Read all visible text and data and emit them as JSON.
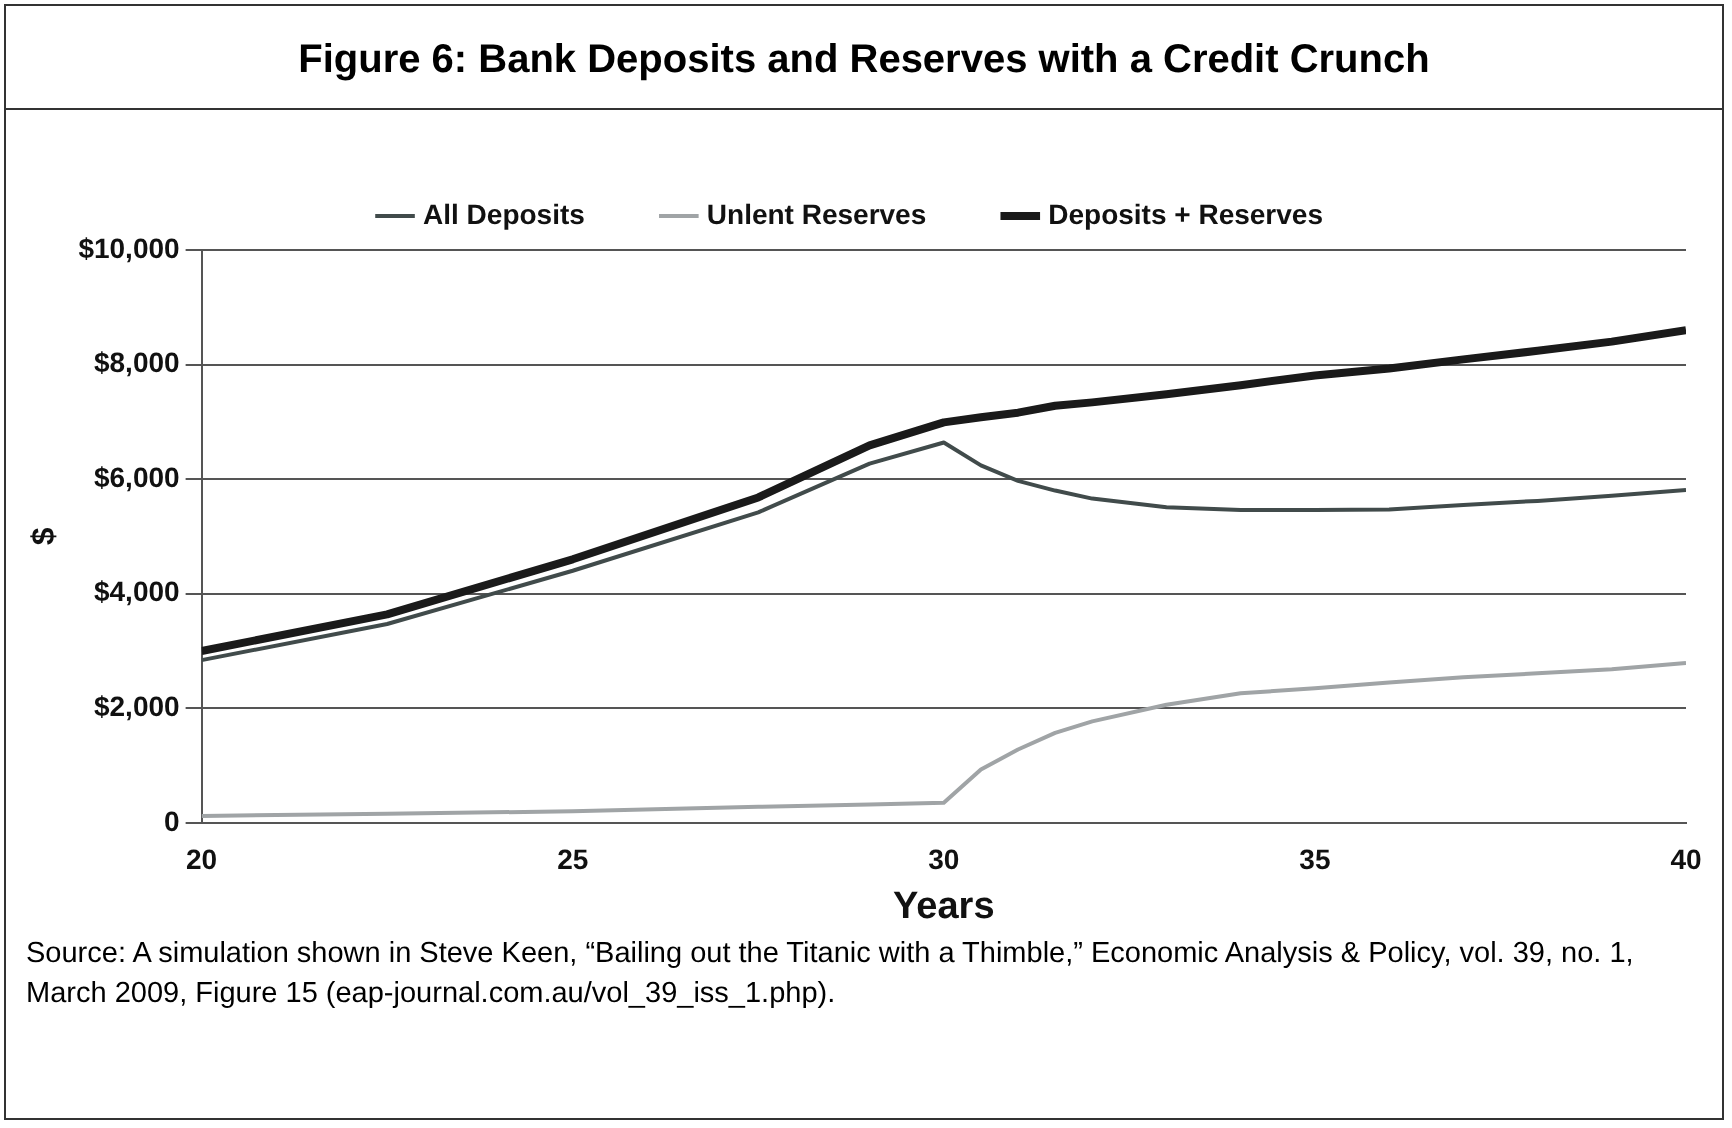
{
  "chart_data": {
    "type": "line",
    "title": "Figure 6: Bank Deposits and Reserves with a Credit Crunch",
    "xlabel": "Years",
    "ylabel": "$",
    "annotations": [
      "Source: A simulation shown in Steve Keen, “Bailing out the Titanic with a Thimble,” Economic Analysis & Policy, vol. 39, no. 1, March 2009, Figure 15 (eap-journal.com.au/vol_39_iss_1.php)."
    ],
    "x": [
      20,
      22.5,
      25,
      27.5,
      29,
      30,
      30.5,
      31,
      31.5,
      32,
      33,
      34,
      35,
      36,
      37,
      38,
      39,
      40
    ],
    "series": [
      {
        "name": "All Deposits",
        "color": "#414b4b",
        "values": [
          2840,
          3470,
          4400,
          5420,
          6270,
          6640,
          6240,
          5970,
          5800,
          5660,
          5510,
          5460,
          5460,
          5470,
          5550,
          5620,
          5710,
          5810
        ]
      },
      {
        "name": "Unlent Reserves",
        "color": "#a0a4a6",
        "values": [
          120,
          160,
          200,
          280,
          320,
          350,
          930,
          1280,
          1570,
          1770,
          2060,
          2260,
          2350,
          2450,
          2540,
          2610,
          2680,
          2790
        ]
      },
      {
        "name": "Deposits + Reserves",
        "color": "#1a1a1a",
        "values": [
          3000,
          3640,
          4600,
          5680,
          6590,
          6990,
          7080,
          7160,
          7280,
          7340,
          7480,
          7640,
          7810,
          7930,
          8090,
          8240,
          8400,
          8600
        ]
      }
    ],
    "xlim": [
      20,
      40
    ],
    "xticks": [
      20,
      25,
      30,
      35,
      40
    ],
    "ylim": [
      0,
      10000
    ],
    "yticks": [
      0,
      {
        "value": 2000,
        "label": "$2,000"
      },
      {
        "value": 4000,
        "label": "$4,000"
      },
      {
        "value": 6000,
        "label": "$6,000"
      },
      {
        "value": 8000,
        "label": "$8,000"
      },
      {
        "value": 10000,
        "label": "$10,000"
      }
    ],
    "grid": "y",
    "legend": "top",
    "marker": "none",
    "line_style": "solid"
  }
}
